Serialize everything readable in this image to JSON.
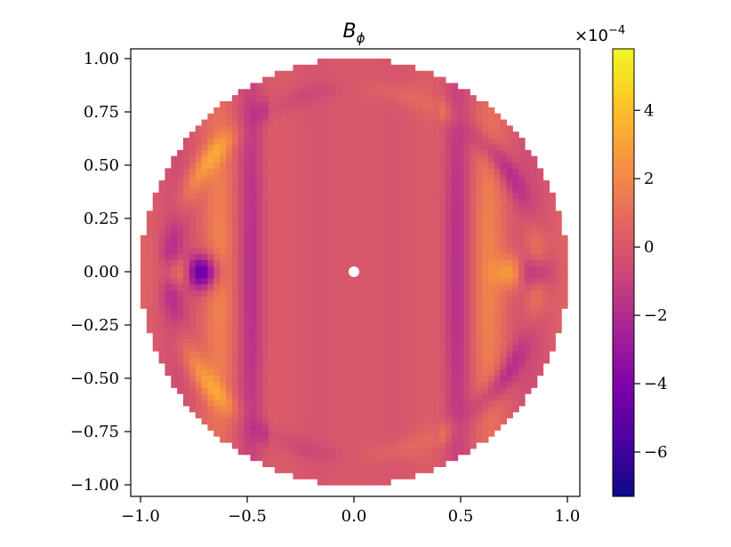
{
  "chart_data": {
    "type": "heatmap",
    "title": {
      "main": "B",
      "subscript": "ϕ"
    },
    "xlabel": "",
    "ylabel": "",
    "xlim": [
      -1.05,
      1.05
    ],
    "ylim": [
      -1.05,
      1.05
    ],
    "x_ticks": [
      -1.0,
      -0.5,
      0.0,
      0.5,
      1.0
    ],
    "x_tick_labels": [
      "−1.0",
      "−0.5",
      "0.0",
      "0.5",
      "1.0"
    ],
    "y_ticks": [
      1.0,
      0.75,
      0.5,
      0.25,
      0.0,
      -0.25,
      -0.5,
      -0.75,
      -1.0
    ],
    "y_tick_labels": [
      "1.00",
      "0.75",
      "0.50",
      "0.25",
      "0.00",
      "−0.25",
      "−0.50",
      "−0.75",
      "−1.00"
    ],
    "domain": "unit disk",
    "colormap": "plasma",
    "colorbar": {
      "range": [
        -7.3,
        5.8
      ],
      "ticks": [
        4,
        2,
        0,
        -2,
        -4,
        -6
      ],
      "tick_labels": [
        "4",
        "2",
        "0",
        "−2",
        "−4",
        "−6"
      ],
      "offset_base": "×10",
      "offset_exponent": "−4"
    },
    "field_features": [
      {
        "x": -0.82,
        "y": 0.0,
        "value": 3.5
      },
      {
        "x": -0.72,
        "y": 0.0,
        "value": -6.0
      },
      {
        "x": 0.75,
        "y": 0.0,
        "value": 3.0
      },
      {
        "x": 0.84,
        "y": 0.0,
        "value": -3.5
      },
      {
        "x": 0.0,
        "y": 0.0,
        "value": 0.0
      }
    ]
  }
}
